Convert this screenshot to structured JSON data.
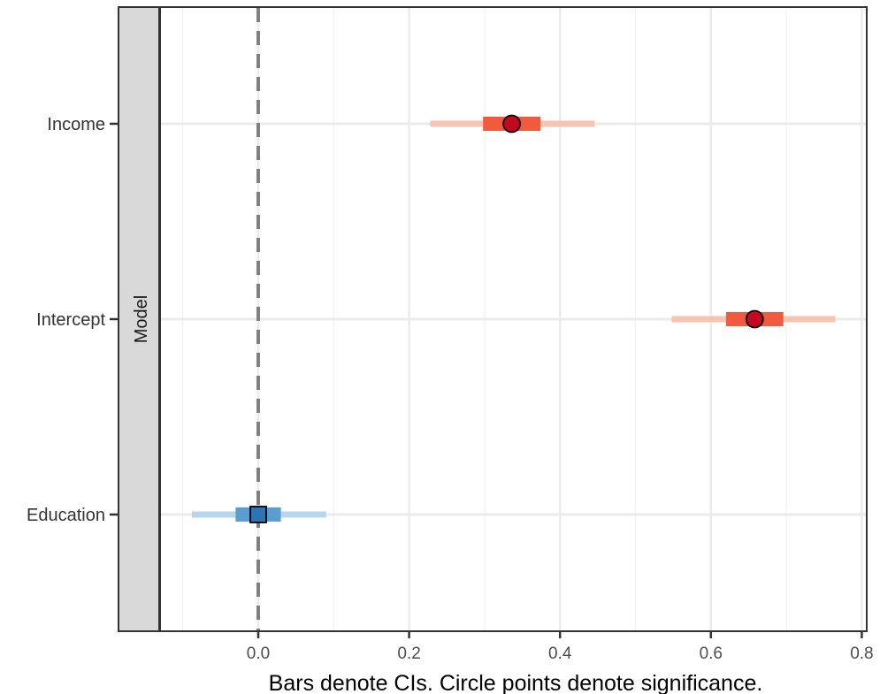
{
  "chart_data": {
    "type": "scatter",
    "subtype": "coefficient-plot",
    "facet_label": "Model",
    "xlabel": "Bars denote CIs. Circle points denote significance.",
    "xlim": [
      -0.185,
      0.805
    ],
    "x_ticks": [
      0.0,
      0.2,
      0.4,
      0.6,
      0.8
    ],
    "x_tick_labels": [
      "0.0",
      "0.2",
      "0.4",
      "0.6",
      "0.8"
    ],
    "reference_line": 0.0,
    "grid": true,
    "categories": [
      "Income",
      "Intercept",
      "Education"
    ],
    "points": [
      {
        "term": "Income",
        "estimate": 0.336,
        "ci_inner": [
          0.298,
          0.374
        ],
        "ci_outer": [
          0.228,
          0.446
        ],
        "significant": true
      },
      {
        "term": "Intercept",
        "estimate": 0.658,
        "ci_inner": [
          0.62,
          0.696
        ],
        "ci_outer": [
          0.548,
          0.765
        ],
        "significant": true
      },
      {
        "term": "Education",
        "estimate": 0.0,
        "ci_inner": [
          -0.03,
          0.03
        ],
        "ci_outer": [
          -0.088,
          0.09
        ],
        "significant": false
      }
    ],
    "colors": {
      "positive_outer": "#f8c3b0",
      "positive_inner": "#f15a3f",
      "positive_point": "#c4081f",
      "neutral_outer": "#b9d5ea",
      "neutral_inner": "#5a9dd0",
      "neutral_point": "#2d74b5",
      "panel_border": "#333333",
      "grid_major": "#ebebeb",
      "grid_minor": "#f4f4f4",
      "reference_line": "#808080",
      "strip_fill": "#d9d9d9"
    }
  }
}
